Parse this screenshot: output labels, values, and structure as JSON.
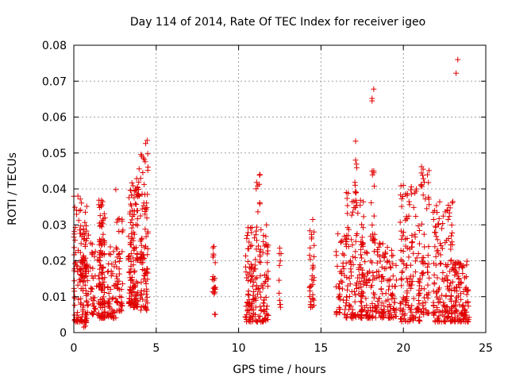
{
  "chart_data": {
    "type": "scatter",
    "title": "Day 114 of 2014, Rate Of TEC Index for receiver igeo",
    "xlabel": "GPS time / hours",
    "ylabel": "ROTI / TECUs",
    "xlim": [
      0,
      25
    ],
    "ylim": [
      0,
      0.08
    ],
    "xticks": [
      0,
      5,
      10,
      15,
      20,
      25
    ],
    "xtick_labels": [
      "0",
      "5",
      "10",
      "15",
      "20",
      "25"
    ],
    "yticks": [
      0,
      0.01,
      0.02,
      0.03,
      0.04,
      0.05,
      0.06,
      0.07,
      0.08
    ],
    "ytick_labels": [
      "0",
      "0.01",
      "0.02",
      "0.03",
      "0.04",
      "0.05",
      "0.06",
      "0.07",
      "0.08"
    ],
    "grid": true,
    "marker": "+",
    "color": "#e00000",
    "clusters": [
      {
        "x": [
          0.0,
          0.9
        ],
        "y": [
          0.003,
          0.038
        ],
        "n": 120
      },
      {
        "x": [
          0.4,
          0.8
        ],
        "y": [
          0.015,
          0.03
        ],
        "n": 40
      },
      {
        "x": [
          0.6,
          0.8
        ],
        "y": [
          0.0015,
          0.004
        ],
        "n": 5
      },
      {
        "x": [
          1.0,
          1.5
        ],
        "y": [
          0.005,
          0.025
        ],
        "n": 35
      },
      {
        "x": [
          1.5,
          1.9
        ],
        "y": [
          0.004,
          0.037
        ],
        "n": 110
      },
      {
        "x": [
          2.0,
          2.6
        ],
        "y": [
          0.004,
          0.024
        ],
        "n": 50
      },
      {
        "x": [
          2.6,
          3.0
        ],
        "y": [
          0.006,
          0.033
        ],
        "n": 45
      },
      {
        "x": [
          3.3,
          3.9
        ],
        "y": [
          0.007,
          0.042
        ],
        "n": 130
      },
      {
        "x": [
          3.8,
          4.0
        ],
        "y": [
          0.035,
          0.047
        ],
        "n": 10
      },
      {
        "x": [
          4.0,
          4.5
        ],
        "y": [
          0.006,
          0.053
        ],
        "n": 90
      },
      {
        "x": [
          8.4,
          8.6
        ],
        "y": [
          0.005,
          0.024
        ],
        "n": 20
      },
      {
        "x": [
          10.4,
          11.8
        ],
        "y": [
          0.003,
          0.03
        ],
        "n": 170
      },
      {
        "x": [
          11.0,
          11.3
        ],
        "y": [
          0.03,
          0.044
        ],
        "n": 8
      },
      {
        "x": [
          12.4,
          12.6
        ],
        "y": [
          0.007,
          0.023
        ],
        "n": 10
      },
      {
        "x": [
          14.3,
          14.6
        ],
        "y": [
          0.007,
          0.031
        ],
        "n": 35
      },
      {
        "x": [
          15.9,
          16.6
        ],
        "y": [
          0.005,
          0.028
        ],
        "n": 50
      },
      {
        "x": [
          16.5,
          17.6
        ],
        "y": [
          0.004,
          0.039
        ],
        "n": 110
      },
      {
        "x": [
          17.0,
          17.2
        ],
        "y": [
          0.039,
          0.053
        ],
        "n": 6
      },
      {
        "x": [
          17.4,
          19.6
        ],
        "y": [
          0.004,
          0.025
        ],
        "n": 190
      },
      {
        "x": [
          18.0,
          18.3
        ],
        "y": [
          0.025,
          0.045
        ],
        "n": 15
      },
      {
        "x": [
          19.8,
          21.0
        ],
        "y": [
          0.003,
          0.041
        ],
        "n": 140
      },
      {
        "x": [
          21.0,
          21.6
        ],
        "y": [
          0.005,
          0.046
        ],
        "n": 60
      },
      {
        "x": [
          21.8,
          23.0
        ],
        "y": [
          0.003,
          0.037
        ],
        "n": 150
      },
      {
        "x": [
          23.0,
          24.0
        ],
        "y": [
          0.003,
          0.02
        ],
        "n": 110
      }
    ],
    "highlights": [
      {
        "x": 0.25,
        "y": 0.038
      },
      {
        "x": 0.7,
        "y": 0.0018
      },
      {
        "x": 2.55,
        "y": 0.0398
      },
      {
        "x": 4.45,
        "y": 0.0535
      },
      {
        "x": 8.5,
        "y": 0.024
      },
      {
        "x": 11.3,
        "y": 0.044
      },
      {
        "x": 12.5,
        "y": 0.0235
      },
      {
        "x": 14.5,
        "y": 0.0315
      },
      {
        "x": 17.1,
        "y": 0.0533
      },
      {
        "x": 17.1,
        "y": 0.048
      },
      {
        "x": 18.2,
        "y": 0.0678
      },
      {
        "x": 18.1,
        "y": 0.0652
      },
      {
        "x": 18.1,
        "y": 0.0645
      },
      {
        "x": 18.2,
        "y": 0.045
      },
      {
        "x": 20.0,
        "y": 0.041
      },
      {
        "x": 21.1,
        "y": 0.0462
      },
      {
        "x": 21.2,
        "y": 0.0455
      },
      {
        "x": 23.3,
        "y": 0.076
      },
      {
        "x": 23.2,
        "y": 0.0722
      },
      {
        "x": 23.0,
        "y": 0.0365
      }
    ]
  }
}
